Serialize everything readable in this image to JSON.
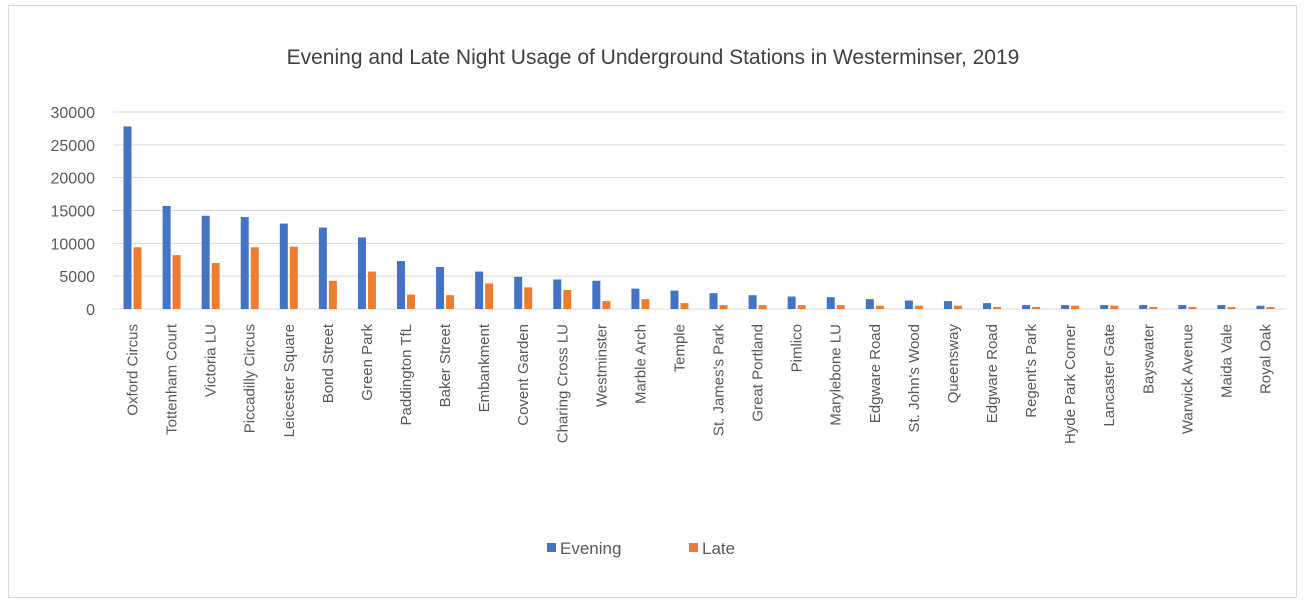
{
  "chart_data": {
    "type": "bar",
    "title": "Evening and Late Night Usage of Underground Stations in Westerminser, 2019",
    "xlabel": "",
    "ylabel": "",
    "ylim": [
      0,
      30000
    ],
    "yticks": [
      0,
      5000,
      10000,
      15000,
      20000,
      25000,
      30000
    ],
    "grid": true,
    "legend": "bottom",
    "categories": [
      "Oxford Circus",
      "Tottenham Court",
      "Victoria LU",
      "Piccadilly Circus",
      "Leicester Square",
      "Bond Street",
      "Green Park",
      "Paddington TfL",
      "Baker Street",
      "Embankment",
      "Covent Garden",
      "Charing Cross LU",
      "Westminster",
      "Marble Arch",
      "Temple",
      "St. James's Park",
      "Great Portland",
      "Pimlico",
      "Marylebone LU",
      "Edgware Road",
      "St. John's Wood",
      "Queensway",
      "Edgware Road",
      "Regent's Park",
      "Hyde Park Corner",
      "Lancaster Gate",
      "Bayswater",
      "Warwick Avenue",
      "Maida Vale",
      "Royal Oak"
    ],
    "series": [
      {
        "name": "Evening",
        "color": "#4472c4",
        "values": [
          27800,
          15700,
          14200,
          14000,
          13000,
          12400,
          10900,
          7300,
          6400,
          5700,
          4900,
          4500,
          4300,
          3100,
          2800,
          2400,
          2100,
          1900,
          1800,
          1500,
          1300,
          1200,
          900,
          600,
          600,
          600,
          600,
          600,
          600,
          500
        ]
      },
      {
        "name": "Late",
        "color": "#ed7d31",
        "values": [
          9400,
          8200,
          7000,
          9400,
          9500,
          4300,
          5700,
          2200,
          2100,
          3900,
          3300,
          2900,
          1200,
          1500,
          900,
          600,
          600,
          600,
          600,
          500,
          500,
          500,
          300,
          300,
          500,
          500,
          300,
          300,
          300,
          300
        ]
      }
    ]
  }
}
